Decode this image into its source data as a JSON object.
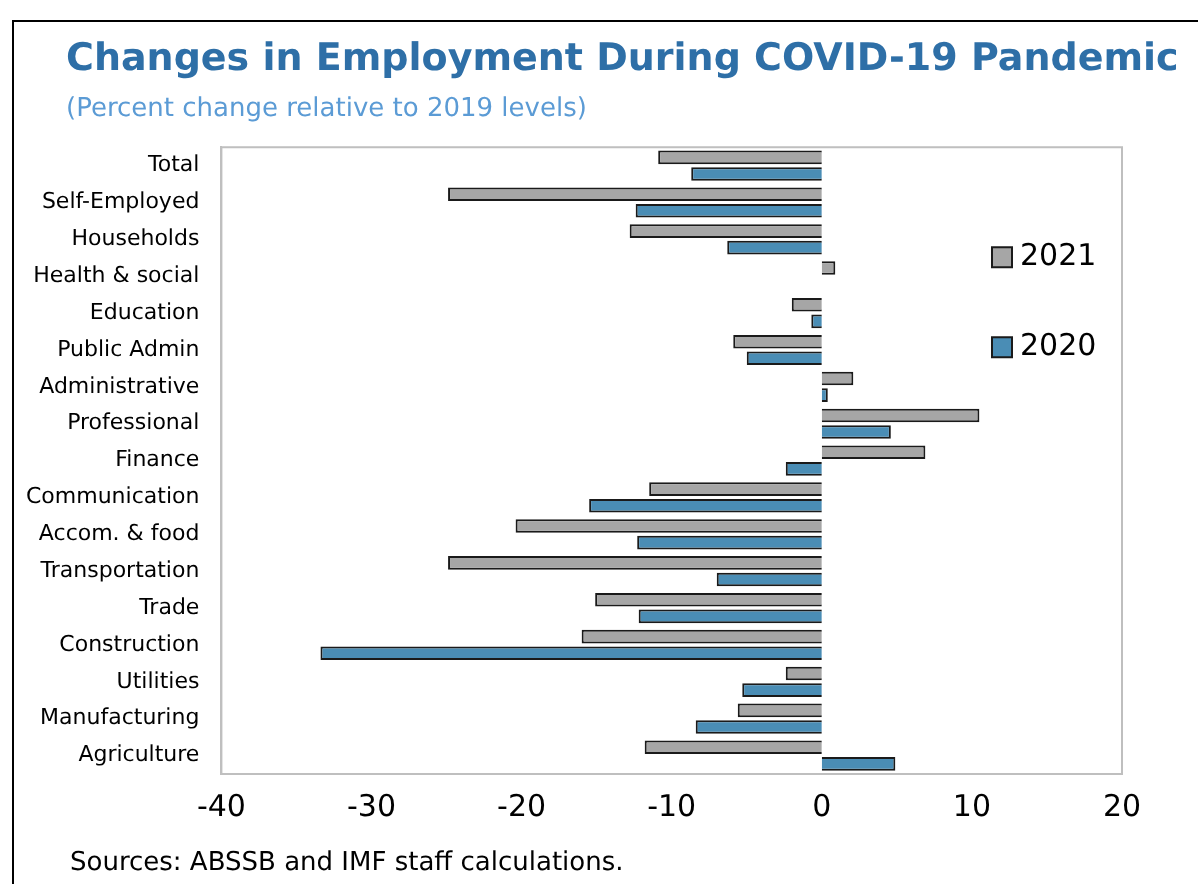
{
  "chart_data": {
    "type": "bar",
    "orientation": "horizontal",
    "title": "Changes in Employment During COVID-19 Pandemic",
    "subtitle": "(Percent change relative to 2019 levels)",
    "categories": [
      "Total",
      "Self-Employed",
      "Households",
      "Health & social",
      "Education",
      "Public Admin",
      "Administrative",
      "Professional",
      "Finance",
      "Communication",
      "Accom. & food",
      "Transportation",
      "Trade",
      "Construction",
      "Utilities",
      "Manufacturing",
      "Agriculture"
    ],
    "series": [
      {
        "name": "2021",
        "color": "#a6a6a6",
        "values": [
          -10.9,
          -24.9,
          -12.8,
          0.9,
          -2.0,
          -5.9,
          2.1,
          10.5,
          6.9,
          -11.5,
          -20.4,
          -24.9,
          -15.1,
          -16.0,
          -2.4,
          -5.6,
          -11.8
        ]
      },
      {
        "name": "2020",
        "color": "#4a8db5",
        "values": [
          -8.7,
          -12.4,
          -6.3,
          null,
          -0.7,
          -5.0,
          0.4,
          4.6,
          -2.4,
          -15.5,
          -12.3,
          -7.0,
          -12.2,
          -33.4,
          -5.3,
          -8.4,
          4.9
        ]
      }
    ],
    "xlim": [
      -40,
      20
    ],
    "xticks": [
      -40,
      -30,
      -20,
      -10,
      0,
      10,
      20
    ],
    "grid": false,
    "legend": "right",
    "annotations": [
      "Sources: ABSSB and IMF staff calculations."
    ]
  }
}
